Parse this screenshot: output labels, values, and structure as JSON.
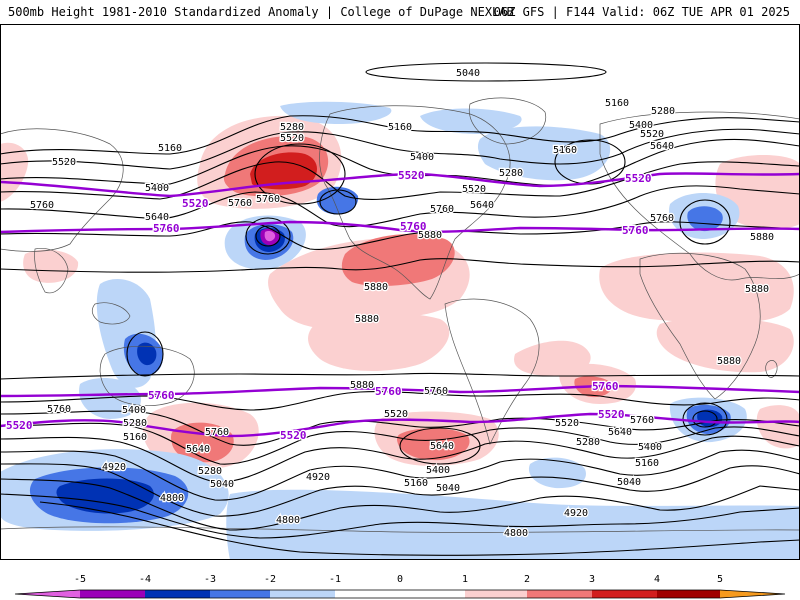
{
  "header": {
    "title": "500mb Height 1981-2010 Standardized Anomaly | College of DuPage NEXLAB",
    "valid": "06Z GFS | F144 Valid: 06Z TUE APR 01 2025"
  },
  "colors": {
    "neg5": "#e060e0",
    "neg4": "#9b00b8",
    "neg3": "#0032b4",
    "neg2": "#4676e6",
    "neg1": "#bcd6f8",
    "pos1": "#fbd0d0",
    "pos2": "#f07878",
    "pos3": "#d21e1e",
    "pos4": "#a00000",
    "pos5": "#f59a1e",
    "highlight_contour": "#9400d3",
    "contour": "#000000",
    "land_outline": "#555555"
  },
  "height_labels": {
    "black": [
      "5040",
      "5160",
      "5280",
      "5400",
      "5520",
      "5640",
      "5760",
      "5880",
      "4920",
      "4800"
    ],
    "purple": [
      "5520",
      "5760"
    ]
  },
  "legend": {
    "ticks": [
      "-5",
      "-4",
      "-3",
      "-2",
      "-1",
      "0",
      "1",
      "2",
      "3",
      "4",
      "5"
    ]
  }
}
